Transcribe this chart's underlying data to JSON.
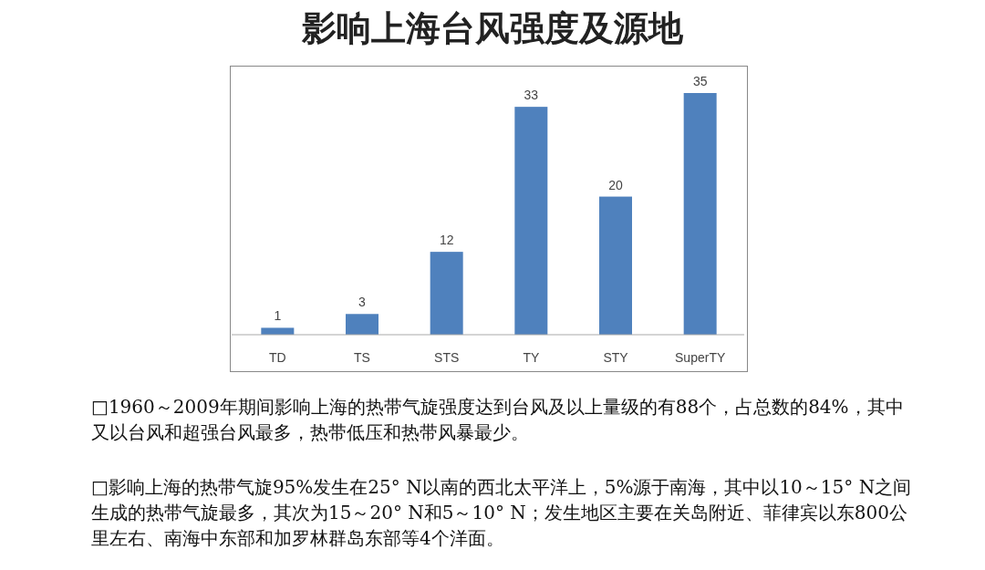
{
  "chart_data": {
    "type": "bar",
    "title": "影响上海台风强度及源地",
    "categories": [
      "TD",
      "TS",
      "STS",
      "TY",
      "STY",
      "SuperTY"
    ],
    "values": [
      1,
      3,
      12,
      33,
      20,
      35
    ],
    "color": "#4f81bd",
    "data_labels": true,
    "annotations": [
      "□1960～2009年期间影响上海的热带气旋强度达到台风及以上量级的有88个，占总数的84%，其中又以台风和超强台风最多，热带低压和热带风暴最少。",
      "□影响上海的热带气旋95%发生在25° N以南的西北太平洋上，5%源于南海，其中以10～15° N之间生成的热带气旋最多，其次为15～20° N和5～10° N；发生地区主要在关岛附近、菲律宾以东800公里左右、南海中东部和加罗林群岛东部等4个洋面。"
    ]
  }
}
